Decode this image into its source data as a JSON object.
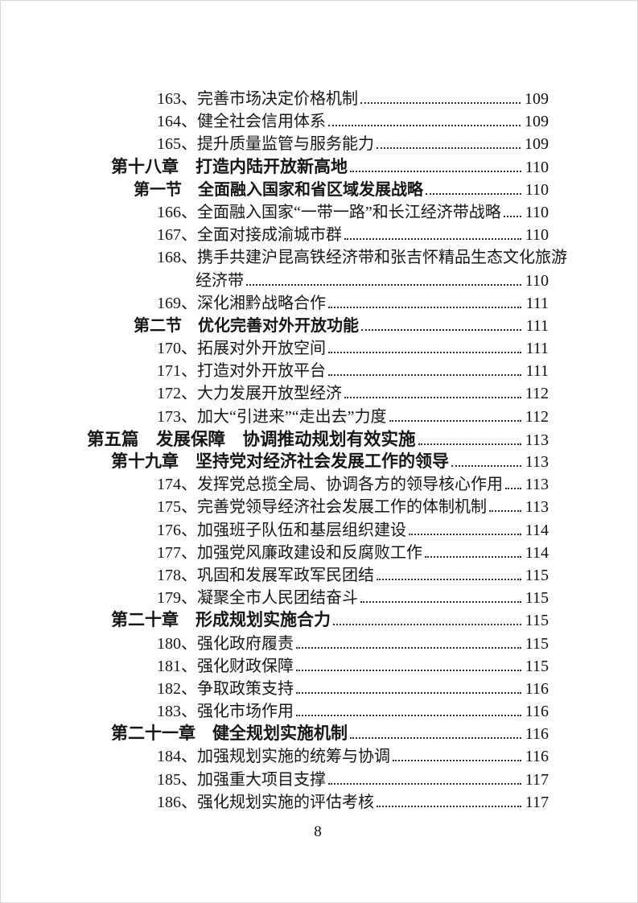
{
  "toc": {
    "entries": [
      {
        "level": "item",
        "text": "163、完善市场决定价格机制",
        "page": "109"
      },
      {
        "level": "item",
        "text": "164、健全社会信用体系",
        "page": "109"
      },
      {
        "level": "item",
        "text": "165、提升质量监管与服务能力",
        "page": "109"
      },
      {
        "level": "chapter",
        "text": "第十八章　打造内陆开放新高地",
        "page": "110"
      },
      {
        "level": "section",
        "text": "第一节　全面融入国家和省区域发展战略",
        "page": "110"
      },
      {
        "level": "item",
        "text": "166、全面融入国家“一带一路”和长江经济带战略",
        "page": "110"
      },
      {
        "level": "item",
        "text": "167、全面对接成渝城市群",
        "page": "110"
      },
      {
        "level": "item",
        "text": "168、携手共建沪昆高铁经济带和张吉怀精品生态文化旅游",
        "page": ""
      },
      {
        "level": "cont",
        "text": "经济带",
        "page": "110"
      },
      {
        "level": "item",
        "text": "169、深化湘黔战略合作",
        "page": "111"
      },
      {
        "level": "section",
        "text": "第二节　优化完善对外开放功能",
        "page": "111"
      },
      {
        "level": "item",
        "text": "170、拓展对外开放空间",
        "page": "111"
      },
      {
        "level": "item",
        "text": "171、打造对外开放平台",
        "page": "111"
      },
      {
        "level": "item",
        "text": "172、大力发展开放型经济",
        "page": "112"
      },
      {
        "level": "item",
        "text": "173、加大“引进来”“走出去”力度",
        "page": "112"
      },
      {
        "level": "part",
        "text": "第五篇　发展保障　协调推动规划有效实施",
        "page": "113"
      },
      {
        "level": "chapter",
        "text": "第十九章　坚持党对经济社会发展工作的领导",
        "page": "113"
      },
      {
        "level": "item",
        "text": "174、发挥党总揽全局、协调各方的领导核心作用",
        "page": "113"
      },
      {
        "level": "item",
        "text": "175、完善党领导经济社会发展工作的体制机制",
        "page": "113"
      },
      {
        "level": "item",
        "text": "176、加强班子队伍和基层组织建设",
        "page": "114"
      },
      {
        "level": "item",
        "text": "177、加强党风廉政建设和反腐败工作",
        "page": "114"
      },
      {
        "level": "item",
        "text": "178、巩固和发展军政军民团结",
        "page": "115"
      },
      {
        "level": "item",
        "text": "179、凝聚全市人民团结奋斗",
        "page": "115"
      },
      {
        "level": "chapter",
        "text": "第二十章　形成规划实施合力",
        "page": "115"
      },
      {
        "level": "item",
        "text": "180、强化政府履责",
        "page": "115"
      },
      {
        "level": "item",
        "text": "181、强化财政保障",
        "page": "115"
      },
      {
        "level": "item",
        "text": "182、争取政策支持",
        "page": "116"
      },
      {
        "level": "item",
        "text": "183、强化市场作用",
        "page": "116"
      },
      {
        "level": "chapter",
        "text": "第二十一章　健全规划实施机制",
        "page": "116"
      },
      {
        "level": "item",
        "text": "184、加强规划实施的统筹与协调",
        "page": "116"
      },
      {
        "level": "item",
        "text": "185、加强重大项目支撑",
        "page": "117"
      },
      {
        "level": "item",
        "text": "186、强化规划实施的评估考核",
        "page": "117"
      }
    ]
  },
  "footer": {
    "page_number": "8"
  }
}
